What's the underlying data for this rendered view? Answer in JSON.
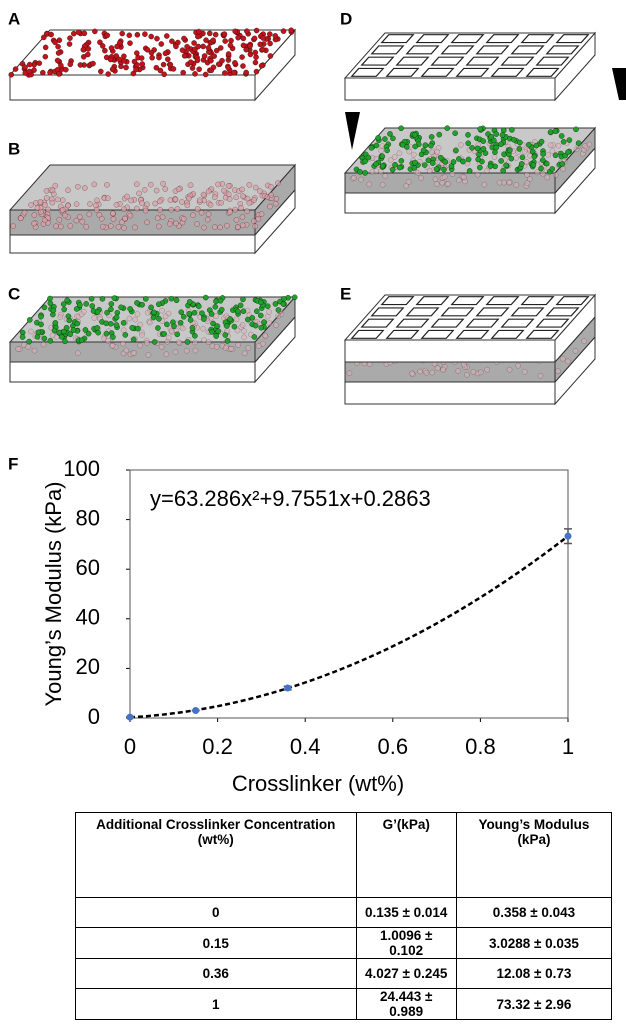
{
  "panel_labels": [
    "A",
    "B",
    "C",
    "D",
    "E",
    "F"
  ],
  "chart_data": {
    "type": "scatter",
    "annotation": "y=63.286x²+9.7551x+0.2863",
    "x_label": "Crosslinker (wt%)",
    "y_label": "Young’s Modulus (kPa)",
    "x": [
      0,
      0.15,
      0.36,
      1
    ],
    "values": [
      0.358,
      3.0288,
      12.08,
      73.32
    ],
    "errors": [
      0.043,
      0.035,
      0.73,
      2.96
    ],
    "color": "#4472c4",
    "xlim": [
      0,
      1
    ],
    "xticks": [
      0,
      0.2,
      0.4,
      0.6,
      0.8,
      1
    ],
    "ylim": [
      0,
      100
    ],
    "yticks": [
      0,
      20,
      40,
      60,
      80,
      100
    ]
  },
  "table": {
    "header": [
      "Additional Crosslinker Concentration (wt%)",
      "G’(kPa)",
      "Young’s Modulus (kPa)"
    ],
    "rows": [
      [
        "0",
        "0.135 ± 0.014",
        "0.358 ± 0.043"
      ],
      [
        "0.15",
        "1.0096 ± 0.102",
        "3.0288 ± 0.035"
      ],
      [
        "0.36",
        "4.027 ± 0.245",
        "12.08 ± 0.73"
      ],
      [
        "1",
        "24.443 ± 0.989",
        "73.32 ± 2.96"
      ]
    ]
  }
}
